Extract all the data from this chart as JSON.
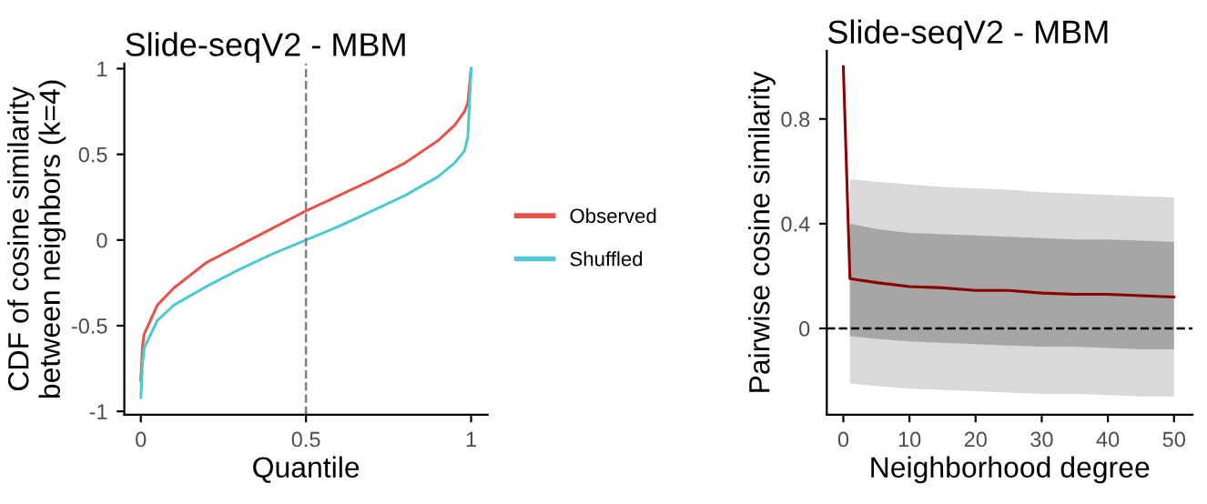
{
  "chart_data": [
    {
      "type": "line",
      "title": "Slide-seqV2 - MBM",
      "xlabel": "Quantile",
      "ylabel": "CDF of cosine similarity\nbetween neighbors (k=4)",
      "x": [
        0,
        0.005,
        0.01,
        0.05,
        0.1,
        0.2,
        0.3,
        0.4,
        0.5,
        0.6,
        0.7,
        0.8,
        0.9,
        0.95,
        0.98,
        0.99,
        1.0
      ],
      "series": [
        {
          "name": "Observed",
          "color": "#e5534b",
          "values": [
            -0.82,
            -0.62,
            -0.55,
            -0.38,
            -0.28,
            -0.13,
            -0.03,
            0.07,
            0.17,
            0.26,
            0.35,
            0.45,
            0.58,
            0.67,
            0.75,
            0.8,
            1.0
          ]
        },
        {
          "name": "Shuffled",
          "color": "#4ec9d4",
          "values": [
            -0.92,
            -0.72,
            -0.63,
            -0.47,
            -0.38,
            -0.27,
            -0.17,
            -0.08,
            0.0,
            0.08,
            0.17,
            0.26,
            0.37,
            0.45,
            0.52,
            0.6,
            1.0
          ]
        }
      ],
      "xlim": [
        -0.05,
        1.05
      ],
      "ylim": [
        -1.02,
        1.03
      ],
      "xticks": [
        0,
        0.5,
        1
      ],
      "yticks": [
        -1,
        -0.5,
        0,
        0.5,
        1
      ],
      "ref_lines": [
        {
          "axis": "x",
          "value": 0.5,
          "color": "#808080",
          "line_style": "dashed"
        }
      ],
      "legend": "right",
      "grid": false
    },
    {
      "type": "line",
      "title": "Slide-seqV2 - MBM",
      "xlabel": "Neighborhood degree",
      "ylabel": "Pairwise cosine similarity",
      "x": [
        0,
        1,
        5,
        10,
        15,
        20,
        25,
        30,
        35,
        40,
        45,
        50
      ],
      "series": [
        {
          "color": "#d9d9d9",
          "values": [
            null,
            null,
            null,
            null,
            null,
            null,
            null,
            null,
            null,
            null,
            null,
            null
          ],
          "lower": [
            null,
            -0.21,
            -0.22,
            -0.23,
            -0.235,
            -0.24,
            -0.245,
            -0.25,
            -0.25,
            -0.255,
            -0.26,
            -0.26
          ],
          "upper": [
            null,
            0.57,
            0.56,
            0.55,
            0.54,
            0.535,
            0.53,
            0.52,
            0.515,
            0.51,
            0.505,
            0.5
          ]
        },
        {
          "color": "#a6a6a6",
          "values": [
            null,
            null,
            null,
            null,
            null,
            null,
            null,
            null,
            null,
            null,
            null,
            null
          ],
          "lower": [
            null,
            -0.03,
            -0.04,
            -0.05,
            -0.055,
            -0.06,
            -0.065,
            -0.07,
            -0.07,
            -0.075,
            -0.08,
            -0.08
          ],
          "upper": [
            null,
            0.4,
            0.38,
            0.365,
            0.36,
            0.355,
            0.35,
            0.345,
            0.34,
            0.34,
            0.335,
            0.33
          ]
        },
        {
          "color": "#8b0000",
          "values": [
            1.0,
            0.19,
            0.175,
            0.16,
            0.155,
            0.145,
            0.145,
            0.135,
            0.13,
            0.13,
            0.125,
            0.12
          ]
        }
      ],
      "xlim": [
        -2.5,
        52.8
      ],
      "ylim": [
        -0.33,
        1.06
      ],
      "xticks": [
        0,
        10,
        20,
        30,
        40,
        50
      ],
      "yticks": [
        0,
        0.4,
        0.8
      ],
      "ref_lines": [
        {
          "axis": "y",
          "value": 0,
          "color": "#000000",
          "line_style": "dashed"
        }
      ],
      "grid": false
    }
  ]
}
